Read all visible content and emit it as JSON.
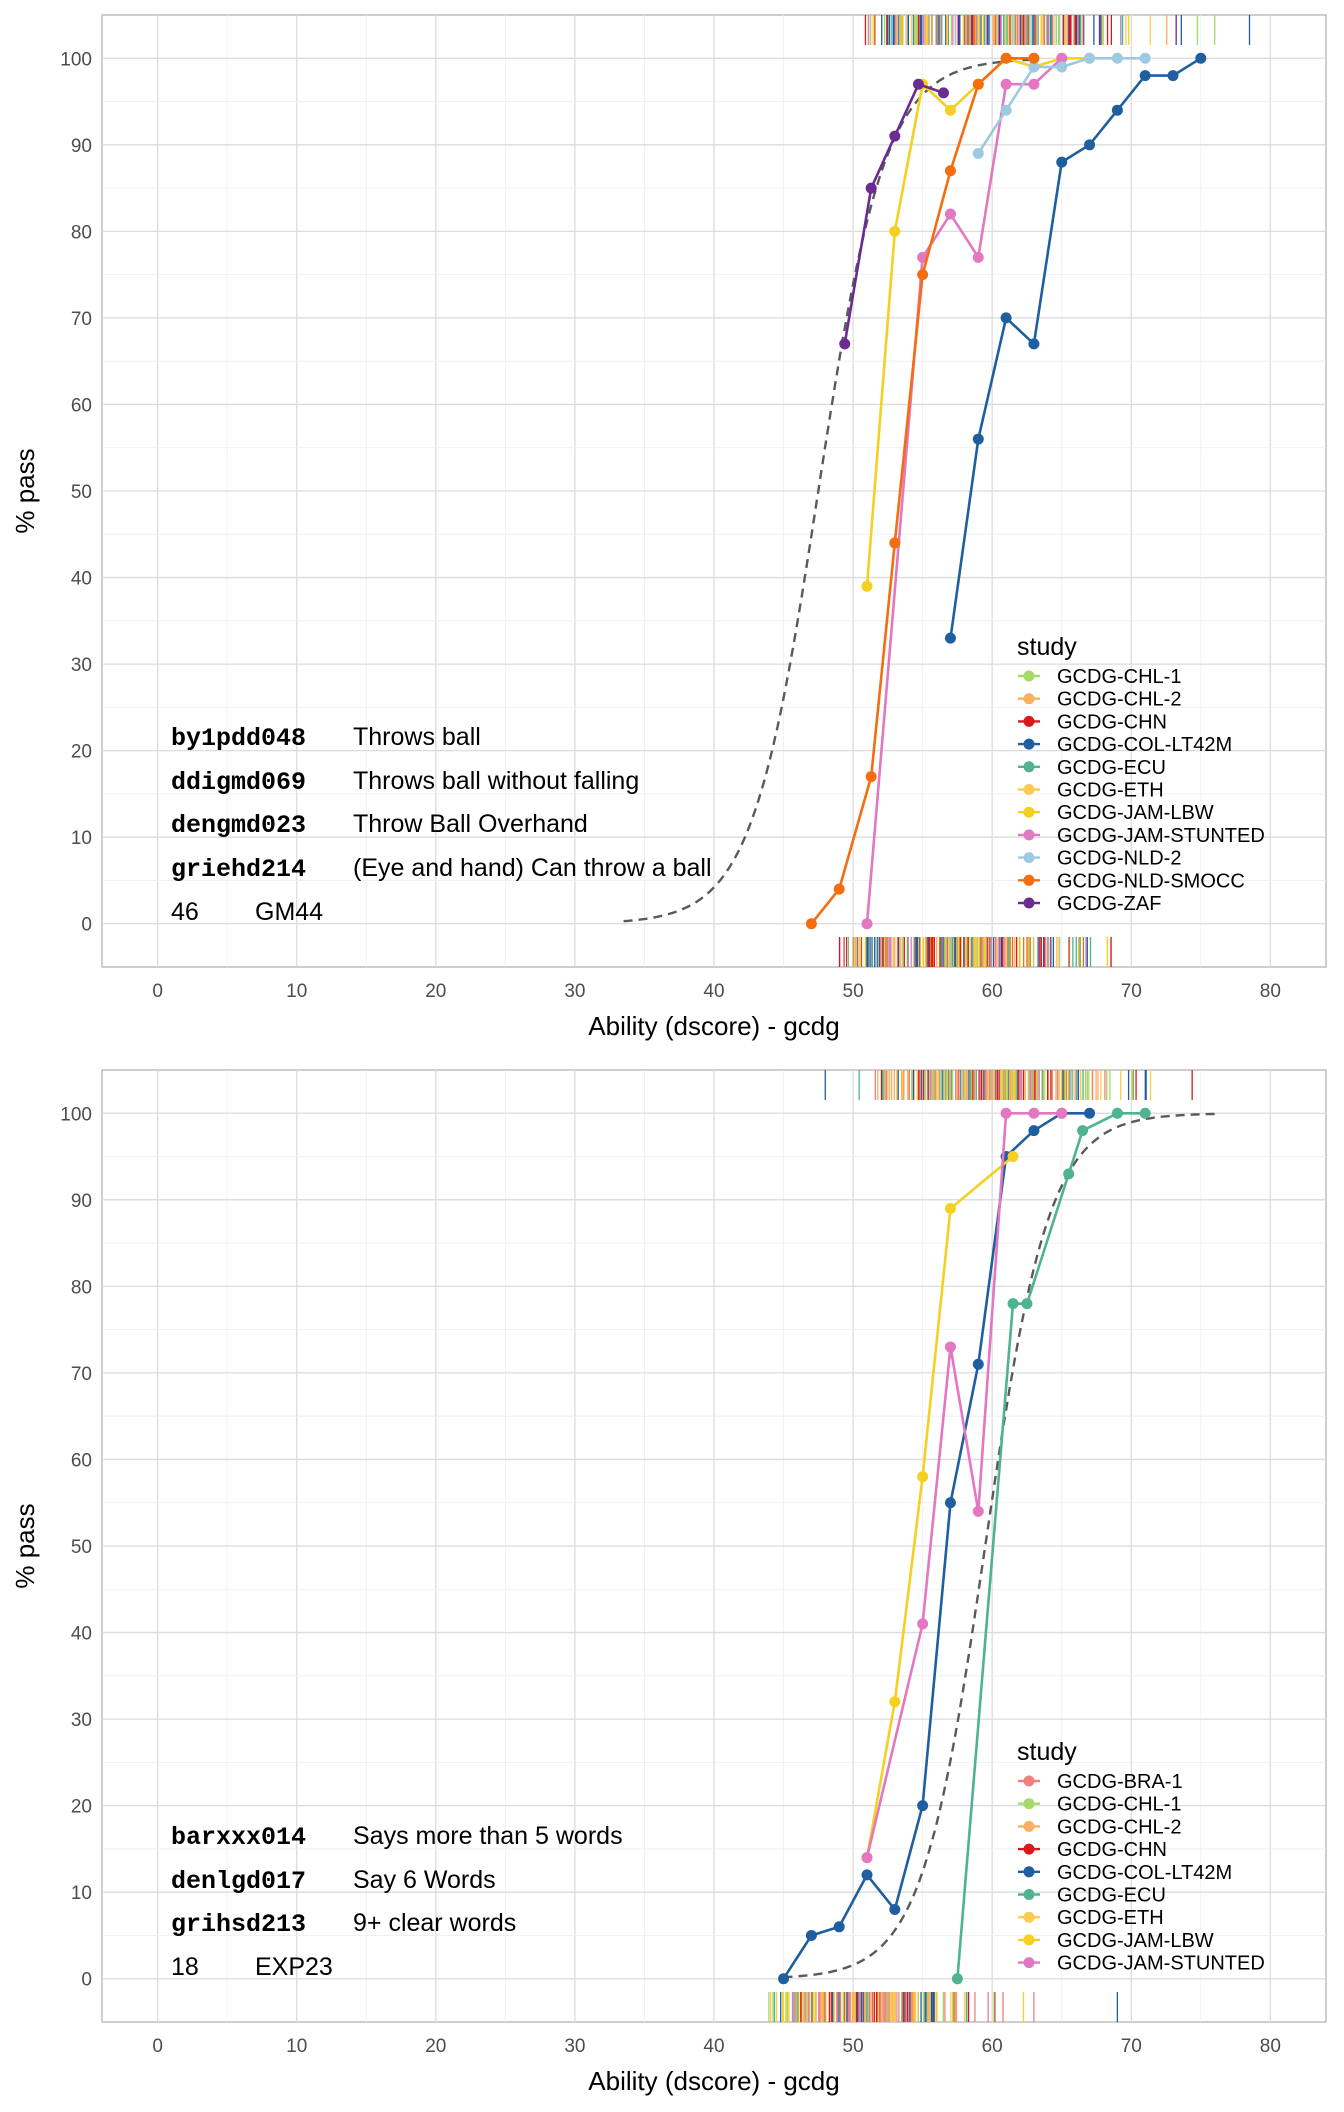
{
  "panels": [
    {
      "xlabel": "Ability (dscore) - gcdg",
      "ylabel": "% pass",
      "items": [
        {
          "code": "by1pdd048",
          "label": "Throws ball"
        },
        {
          "code": "ddigmd069",
          "label": "Throws ball without falling"
        },
        {
          "code": "dengmd023",
          "label": "Throw Ball Overhand"
        },
        {
          "code": "griehd214",
          "label": "(Eye and hand) Can throw a ball"
        }
      ],
      "footer": {
        "number": "46",
        "code": "GM44"
      }
    },
    {
      "xlabel": "Ability (dscore) - gcdg",
      "ylabel": "% pass",
      "items": [
        {
          "code": "barxxx014",
          "label": "Says more than 5 words"
        },
        {
          "code": "denlgd017",
          "label": "Say 6 Words"
        },
        {
          "code": "grihsd213",
          "label": "9+  clear words"
        }
      ],
      "footer": {
        "number": "18",
        "code": "EXP23"
      }
    }
  ],
  "chart_data": [
    {
      "type": "line",
      "xlabel": "Ability (dscore) - gcdg",
      "ylabel": "% pass",
      "xlim": [
        -4,
        84
      ],
      "ylim": [
        -5,
        105
      ],
      "xticks": [
        0,
        10,
        20,
        30,
        40,
        50,
        60,
        70,
        80
      ],
      "yticks": [
        0,
        10,
        20,
        30,
        40,
        50,
        60,
        70,
        80,
        90,
        100
      ],
      "grid": true,
      "legend_title": "study",
      "legend_position": "bottom-right",
      "legend": [
        {
          "name": "GCDG-CHL-1",
          "color": "#a6d96a"
        },
        {
          "name": "GCDG-CHL-2",
          "color": "#fdae61"
        },
        {
          "name": "GCDG-CHN",
          "color": "#d7191c"
        },
        {
          "name": "GCDG-COL-LT42M",
          "color": "#1f5fa0"
        },
        {
          "name": "GCDG-ECU",
          "color": "#4eb38e"
        },
        {
          "name": "GCDG-ETH",
          "color": "#fecb52"
        },
        {
          "name": "GCDG-JAM-LBW",
          "color": "#f5d020"
        },
        {
          "name": "GCDG-JAM-STUNTED",
          "color": "#e377c2"
        },
        {
          "name": "GCDG-NLD-2",
          "color": "#9ecae1"
        },
        {
          "name": "GCDG-NLD-SMOCC",
          "color": "#f46d0f"
        },
        {
          "name": "GCDG-ZAF",
          "color": "#6a2c91"
        }
      ],
      "series": [
        {
          "color": "#1f5fa0",
          "x": [
            57,
            59,
            61,
            63,
            65,
            67,
            69,
            71,
            73,
            75
          ],
          "y": [
            33,
            56,
            70,
            67,
            88,
            90,
            94,
            98,
            98,
            100
          ]
        },
        {
          "color": "#f5d020",
          "x": [
            51,
            53,
            55,
            57,
            59,
            61,
            63,
            65,
            67
          ],
          "y": [
            39,
            80,
            97,
            94,
            97,
            100,
            99,
            100,
            100
          ]
        },
        {
          "color": "#e377c2",
          "x": [
            51,
            55,
            57,
            59,
            61,
            63,
            65
          ],
          "y": [
            0,
            77,
            82,
            77,
            97,
            97,
            100
          ]
        },
        {
          "color": "#9ecae1",
          "x": [
            59,
            61,
            63,
            65,
            67,
            69,
            71
          ],
          "y": [
            89,
            94,
            99,
            99,
            100,
            100,
            100
          ]
        },
        {
          "color": "#f46d0f",
          "x": [
            47,
            49,
            51.3,
            53,
            55,
            57,
            59,
            61,
            63
          ],
          "y": [
            0,
            4,
            17,
            44,
            75,
            87,
            97,
            100,
            100
          ]
        },
        {
          "color": "#6a2c91",
          "x": [
            49.4,
            51.3,
            53,
            54.7,
            56.5
          ],
          "y": [
            67,
            85,
            91,
            97,
            96
          ]
        }
      ],
      "reference_curve": {
        "style": "dashed",
        "color": "#5a5a5a",
        "x_from": 33.5,
        "x_to": 63,
        "location": 47.5,
        "scale": 2.4
      },
      "rug_top": {
        "x_from": 50,
        "x_to": 76,
        "outliers": [
          78.5
        ]
      },
      "rug_bottom": {
        "x_from": 47.5,
        "x_to": 72
      }
    },
    {
      "type": "line",
      "xlabel": "Ability (dscore) - gcdg",
      "ylabel": "% pass",
      "xlim": [
        -4,
        84
      ],
      "ylim": [
        -5,
        105
      ],
      "xticks": [
        0,
        10,
        20,
        30,
        40,
        50,
        60,
        70,
        80
      ],
      "yticks": [
        0,
        10,
        20,
        30,
        40,
        50,
        60,
        70,
        80,
        90,
        100
      ],
      "grid": true,
      "legend_title": "study",
      "legend_position": "bottom-right",
      "legend": [
        {
          "name": "GCDG-BRA-1",
          "color": "#f08080"
        },
        {
          "name": "GCDG-CHL-1",
          "color": "#a6d96a"
        },
        {
          "name": "GCDG-CHL-2",
          "color": "#fdae61"
        },
        {
          "name": "GCDG-CHN",
          "color": "#d7191c"
        },
        {
          "name": "GCDG-COL-LT42M",
          "color": "#1f5fa0"
        },
        {
          "name": "GCDG-ECU",
          "color": "#4eb38e"
        },
        {
          "name": "GCDG-ETH",
          "color": "#fecb52"
        },
        {
          "name": "GCDG-JAM-LBW",
          "color": "#f5d020"
        },
        {
          "name": "GCDG-JAM-STUNTED",
          "color": "#e377c2"
        }
      ],
      "series": [
        {
          "color": "#1f5fa0",
          "x": [
            45,
            47,
            49,
            51,
            53,
            55,
            57,
            59,
            61,
            63,
            65,
            67
          ],
          "y": [
            0,
            5,
            6,
            12,
            8,
            20,
            55,
            71,
            95,
            98,
            100,
            100
          ]
        },
        {
          "color": "#4eb38e",
          "x": [
            57.5,
            61.5,
            62.5,
            65.5,
            66.5,
            69,
            71
          ],
          "y": [
            0,
            78,
            78,
            93,
            98,
            100,
            100
          ]
        },
        {
          "color": "#f5d020",
          "x": [
            51,
            53,
            55,
            57,
            61.5
          ],
          "y": [
            14,
            32,
            58,
            89,
            95
          ]
        },
        {
          "color": "#e377c2",
          "x": [
            51,
            55,
            57,
            59,
            61,
            63,
            65
          ],
          "y": [
            14,
            41,
            73,
            54,
            100,
            100,
            100
          ]
        }
      ],
      "reference_curve": {
        "style": "dashed",
        "color": "#5a5a5a",
        "x_from": 45,
        "x_to": 76,
        "location": 59.5,
        "scale": 2.3
      },
      "rug_top": {
        "x_from": 50,
        "x_to": 76,
        "outliers": [
          48
        ]
      },
      "rug_bottom": {
        "x_from": 43,
        "x_to": 63,
        "outliers": [
          69
        ]
      }
    }
  ]
}
